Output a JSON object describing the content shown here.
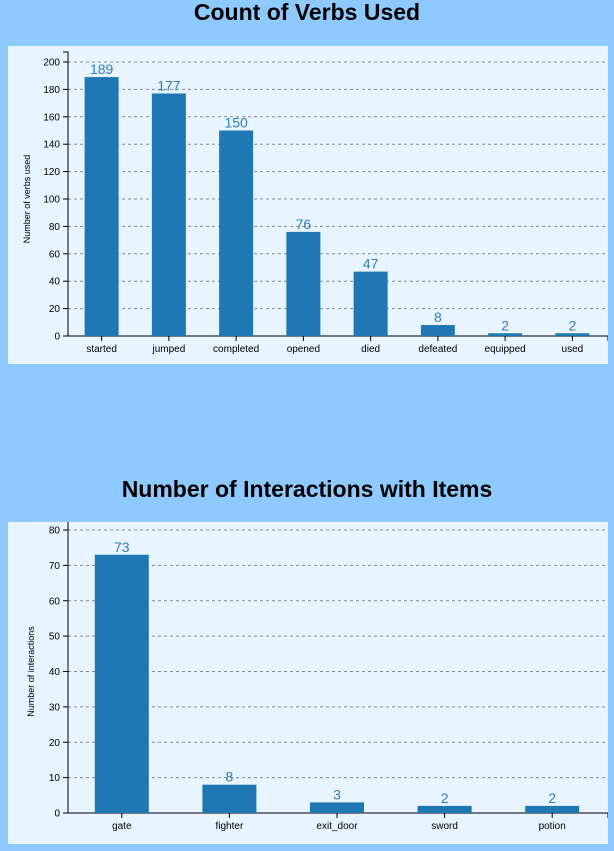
{
  "chart_data": [
    {
      "type": "bar",
      "title": "Count of Verbs Used",
      "xlabel": "",
      "ylabel": "Number of verbs used",
      "categories": [
        "started",
        "jumped",
        "completed",
        "opened",
        "died",
        "defeated",
        "equipped",
        "used"
      ],
      "values": [
        189,
        177,
        150,
        76,
        47,
        8,
        2,
        2
      ],
      "ylim": [
        0,
        200
      ],
      "yticks": [
        0,
        20,
        40,
        60,
        80,
        100,
        120,
        140,
        160,
        180,
        200
      ],
      "grid": true,
      "bar_color": "#1f77b4",
      "label_color": "#2f7fb8"
    },
    {
      "type": "bar",
      "title": "Number of Interactions with Items",
      "xlabel": "",
      "ylabel": "Number of interactions",
      "categories": [
        "gate",
        "fighter",
        "exit_door",
        "sword",
        "potion"
      ],
      "values": [
        73,
        8,
        3,
        2,
        2
      ],
      "ylim": [
        0,
        80
      ],
      "yticks": [
        0,
        10,
        20,
        30,
        40,
        50,
        60,
        70,
        80
      ],
      "grid": true,
      "bar_color": "#1f77b4",
      "label_color": "#2f7fb8"
    }
  ],
  "colors": {
    "page_background": "#8ec9ff",
    "panel_background": "#e8f4ff"
  }
}
